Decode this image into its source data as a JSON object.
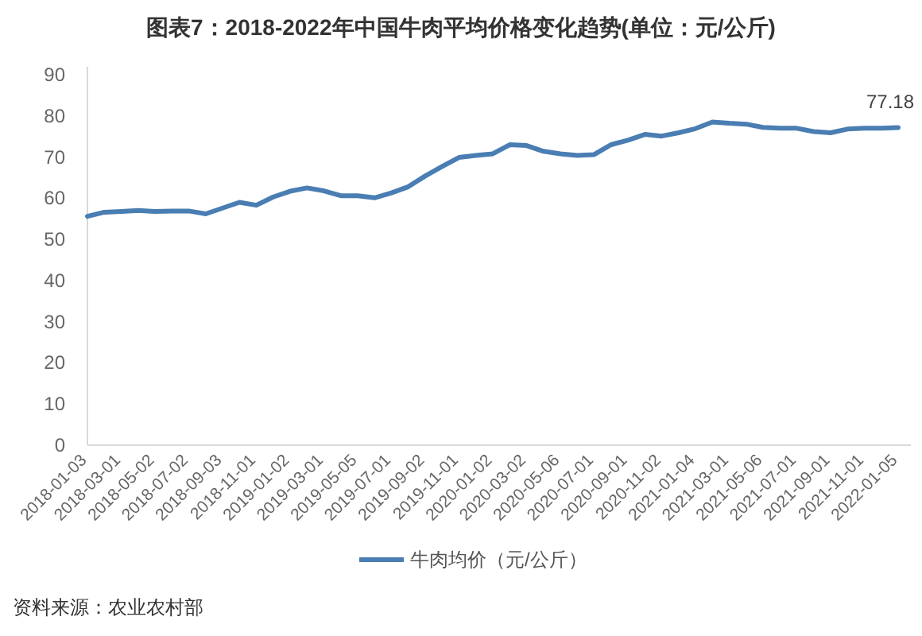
{
  "chart_data": {
    "type": "line",
    "title": "图表7：2018-2022年中国牛肉平均价格变化趋势(单位：元/公斤)",
    "categories": [
      "2018-01-03",
      null,
      "2018-03-01",
      null,
      "2018-05-02",
      null,
      "2018-07-02",
      null,
      "2018-09-03",
      null,
      "2018-11-01",
      null,
      "2019-01-02",
      null,
      "2019-03-01",
      null,
      "2019-05-05",
      null,
      "2019-07-01",
      null,
      "2019-09-02",
      null,
      "2019-11-01",
      null,
      "2020-01-02",
      null,
      "2020-03-02",
      null,
      "2020-05-06",
      null,
      "2020-07-01",
      null,
      "2020-09-01",
      null,
      "2020-11-02",
      null,
      "2021-01-04",
      null,
      "2021-03-01",
      null,
      "2021-05-06",
      null,
      "2021-07-01",
      null,
      "2021-09-01",
      null,
      "2021-11-01",
      null,
      "2022-01-05"
    ],
    "series": [
      {
        "name": "牛肉均价（元/公斤）",
        "color": "#4a7eb3",
        "values": [
          55.6,
          56.6,
          56.8,
          57.0,
          56.8,
          56.9,
          56.9,
          56.2,
          57.6,
          59.0,
          58.3,
          60.3,
          61.7,
          62.5,
          61.8,
          60.6,
          60.6,
          60.1,
          61.3,
          62.8,
          65.4,
          67.7,
          69.9,
          70.4,
          70.8,
          73.0,
          72.8,
          71.4,
          70.8,
          70.4,
          70.6,
          73.0,
          74.1,
          75.5,
          75.1,
          75.9,
          76.9,
          78.5,
          78.2,
          78.0,
          77.2,
          77.0,
          77.0,
          76.2,
          75.9,
          76.8,
          77.0,
          77.0,
          77.18
        ]
      }
    ],
    "ylim": [
      0,
      90
    ],
    "yticks": [
      0,
      10,
      20,
      30,
      40,
      50,
      60,
      70,
      80,
      90
    ],
    "legend": "bottom",
    "marker": "none",
    "annotations": [
      {
        "text": "77.18",
        "x": "2022-01-05",
        "y": 77.18
      },
      "资料来源：农业农村部"
    ]
  }
}
